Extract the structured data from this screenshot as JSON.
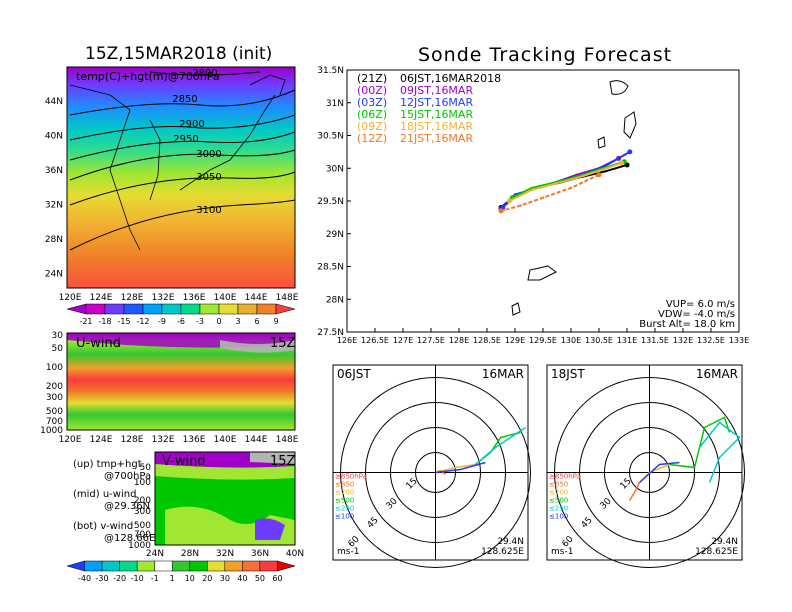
{
  "figure": {
    "main_title": "Sonde Tracking Forecast",
    "left_title": "15Z,15MAR2018 (init)"
  },
  "map_panel": {
    "inner_label": "temp(C)+hgt(m)@700hPa",
    "lat_ticks": [
      "44N",
      "40N",
      "36N",
      "32N",
      "28N",
      "24N"
    ],
    "lon_ticks": [
      "120E",
      "124E",
      "128E",
      "132E",
      "136E",
      "140E",
      "144E",
      "148E"
    ],
    "contour_labels": [
      "2800",
      "2850",
      "2900",
      "2950",
      "3000",
      "3050",
      "3100"
    ],
    "colorbar_labels": [
      "-21",
      "-18",
      "-15",
      "-12",
      "-9",
      "-6",
      "-3",
      "0",
      "3",
      "6",
      "9"
    ],
    "colorbar_colors": [
      "#a000c8",
      "#c800c8",
      "#6e3cff",
      "#1e5aff",
      "#00a0ff",
      "#00c8c8",
      "#00dc8c",
      "#a0e632",
      "#e6dc32",
      "#e6af2d",
      "#f08228",
      "#fa3c3c"
    ]
  },
  "u_wind_panel": {
    "label": "U-wind",
    "time": "15Z",
    "pressure_ticks": [
      "30",
      "50",
      "100",
      "200",
      "300",
      "500",
      "700",
      "1000"
    ],
    "lon_ticks": [
      "120E",
      "124E",
      "128E",
      "132E",
      "136E",
      "140E",
      "144E",
      "148E"
    ]
  },
  "v_wind_panel": {
    "label": "V-wind",
    "time": "15Z",
    "pressure_ticks": [
      "50",
      "100",
      "200",
      "300",
      "500",
      "700",
      "1000"
    ],
    "lat_ticks": [
      "24N",
      "28N",
      "32N",
      "36N",
      "40N"
    ]
  },
  "wind_colorbar": {
    "labels": [
      "-40",
      "-30",
      "-20",
      "-10",
      "-1",
      "1",
      "10",
      "20",
      "30",
      "40",
      "50",
      "60"
    ],
    "colors": [
      "#1e3cff",
      "#00a0ff",
      "#00c8c8",
      "#00dc8c",
      "#a0e632",
      "#ffffff",
      "#32c832",
      "#00c800",
      "#e6dc32",
      "#f0a028",
      "#fa6e3c",
      "#fa3c3c",
      "#e60000"
    ]
  },
  "legend_notes": [
    "(up) tmp+hgt",
    "@700hPa",
    "(mid) u-wind",
    "@29.36N",
    "(bot) v-wind",
    "@128.66E"
  ],
  "track_panel": {
    "lat_ticks": [
      "31.5N",
      "31N",
      "30.5N",
      "30N",
      "29.5N",
      "29N",
      "28.5N",
      "28N",
      "27.5N"
    ],
    "lon_ticks": [
      "126E",
      "126.5E",
      "127E",
      "127.5E",
      "128E",
      "128.5E",
      "129E",
      "129.5E",
      "130E",
      "130.5E",
      "131E",
      "131.5E",
      "132E",
      "132.5E",
      "133E"
    ],
    "legend": [
      {
        "code": "(21Z)",
        "time": "06JST,16MAR2018",
        "color": "#000000"
      },
      {
        "code": "(00Z)",
        "time": "09JST,16MAR",
        "color": "#a000c8"
      },
      {
        "code": "(03Z)",
        "time": "12JST,16MAR",
        "color": "#1e3cff"
      },
      {
        "code": "(06Z)",
        "time": "15JST,16MAR",
        "color": "#00c800"
      },
      {
        "code": "(09Z)",
        "time": "18JST,16MAR",
        "color": "#f0b432"
      },
      {
        "code": "(12Z)",
        "time": "21JST,16MAR",
        "color": "#f07828"
      }
    ],
    "params": [
      "VUP=  6.0 m/s",
      "VDW= -4.0 m/s",
      "Burst Alt= 18.0 km"
    ]
  },
  "chart_data": [
    {
      "type": "line",
      "title": "Sonde Tracking Forecast",
      "xlim": [
        126,
        133
      ],
      "ylim": [
        27.5,
        31.5
      ],
      "series": [
        {
          "name": "06JST,16MAR2018",
          "color": "#000000",
          "x": [
            131.0,
            130.6,
            130.2,
            129.8,
            129.4,
            129.0,
            128.75
          ],
          "y": [
            30.05,
            29.95,
            29.87,
            29.78,
            29.7,
            29.58,
            29.4
          ]
        },
        {
          "name": "09JST,16MAR",
          "color": "#a000c8",
          "x": [
            130.85,
            130.5,
            130.1,
            129.7,
            129.35,
            129.0,
            128.75
          ],
          "y": [
            30.15,
            30.0,
            29.9,
            29.78,
            29.7,
            29.57,
            29.38
          ]
        },
        {
          "name": "12JST,16MAR",
          "color": "#1e3cff",
          "x": [
            131.05,
            130.6,
            130.2,
            129.8,
            129.4,
            129.0,
            128.78
          ],
          "y": [
            30.25,
            30.03,
            29.9,
            29.8,
            29.7,
            29.6,
            29.4
          ]
        },
        {
          "name": "15JST,16MAR",
          "color": "#00c800",
          "x": [
            130.95,
            130.5,
            130.1,
            129.7,
            129.3,
            128.95
          ],
          "y": [
            30.1,
            29.98,
            29.87,
            29.78,
            29.7,
            29.55
          ]
        },
        {
          "name": "18JST,16MAR",
          "color": "#f0b432",
          "x": [
            130.9,
            130.5,
            130.1,
            129.7,
            129.3,
            128.9
          ],
          "y": [
            30.08,
            29.96,
            29.85,
            29.76,
            29.67,
            29.5
          ]
        },
        {
          "name": "21JST,16MAR",
          "color": "#f07828",
          "x": [
            130.5,
            130.0,
            129.5,
            129.1,
            128.8,
            128.75
          ],
          "y": [
            29.9,
            29.7,
            29.55,
            29.43,
            29.36,
            29.35
          ]
        }
      ]
    }
  ],
  "hodographs": [
    {
      "time": "06JST",
      "date": "16MAR",
      "lat": "29.4N",
      "lon": "128.625E",
      "unit": "ms-1",
      "ring_labels": [
        "15",
        "30",
        "45",
        "60"
      ],
      "levels": [
        "≥850hPa",
        "≤850",
        "≤700",
        "≤500",
        "≤250",
        "≤100"
      ],
      "level_colors": [
        "#fa3c3c",
        "#f07828",
        "#f0b432",
        "#00c800",
        "#00c8c8",
        "#1e3cff"
      ]
    },
    {
      "time": "18JST",
      "date": "16MAR",
      "lat": "29.4N",
      "lon": "128.625E",
      "unit": "ms-1",
      "ring_labels": [
        "15",
        "30",
        "45",
        "60"
      ],
      "levels": [
        "≥850hPa",
        "≤850",
        "≤700",
        "≤500",
        "≤250",
        "≤100"
      ],
      "level_colors": [
        "#fa3c3c",
        "#f07828",
        "#f0b432",
        "#00c800",
        "#00c8c8",
        "#1e3cff"
      ]
    }
  ]
}
